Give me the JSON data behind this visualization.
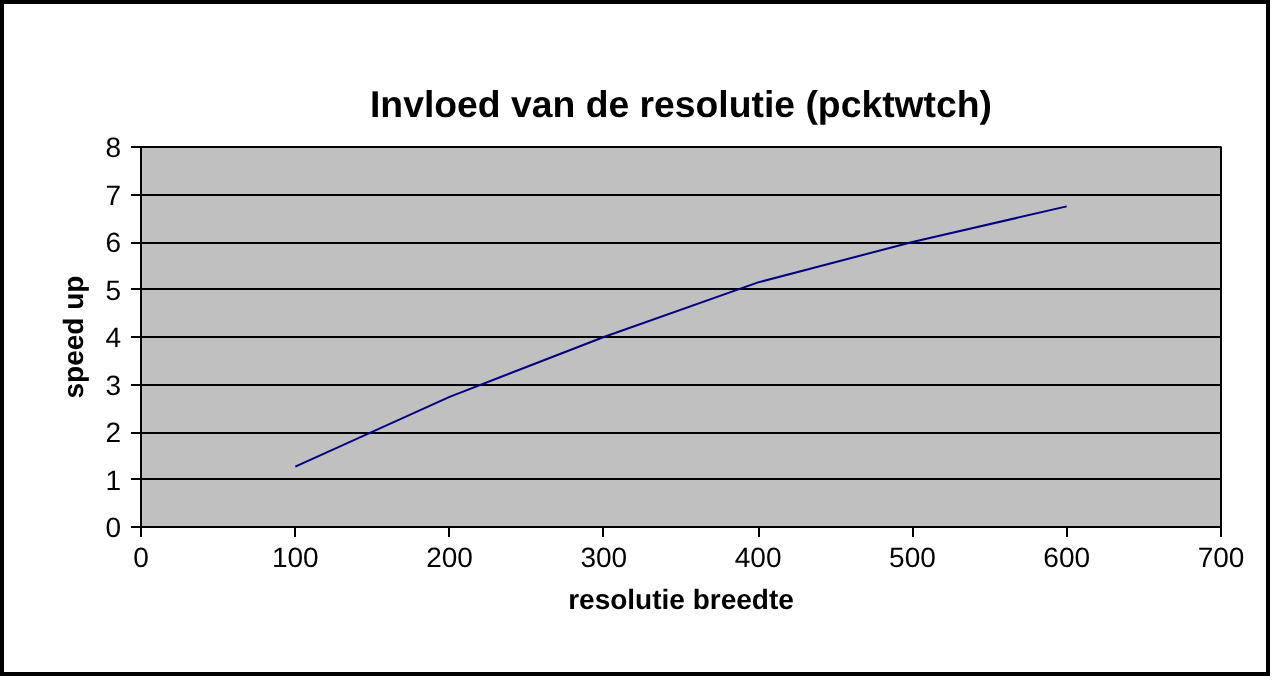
{
  "chart_data": {
    "type": "line",
    "title": "Invloed van de resolutie (pcktwtch)",
    "xlabel": "resolutie breedte",
    "ylabel": "speed up",
    "x": [
      100,
      200,
      300,
      400,
      500,
      600
    ],
    "series": [
      {
        "color": "#000080",
        "values": [
          1.27,
          2.74,
          4.0,
          5.15,
          6.0,
          6.75
        ]
      }
    ],
    "xlim": [
      0,
      700
    ],
    "xticks": [
      0,
      100,
      200,
      300,
      400,
      500,
      600,
      700
    ],
    "ylim": [
      0,
      8
    ],
    "yticks": [
      0,
      1,
      2,
      3,
      4,
      5,
      6,
      7,
      8
    ],
    "grid": "y",
    "marker": "none",
    "line_style": "solid"
  }
}
